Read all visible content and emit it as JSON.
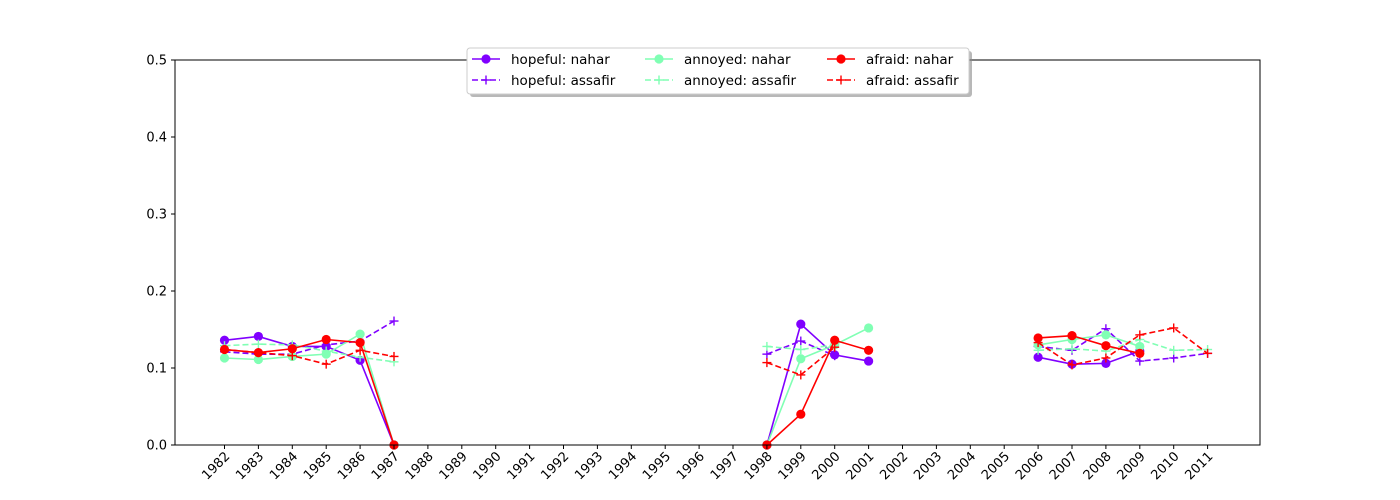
{
  "chart_data": {
    "type": "line",
    "title": "",
    "xlabel": "",
    "ylabel": "",
    "ylim": [
      0,
      0.5
    ],
    "yticks": [
      "0.0",
      "0.1",
      "0.2",
      "0.3",
      "0.4",
      "0.5"
    ],
    "categories": [
      "1982",
      "1983",
      "1984",
      "1985",
      "1986",
      "1987",
      "1988",
      "1989",
      "1990",
      "1991",
      "1992",
      "1993",
      "1994",
      "1995",
      "1996",
      "1997",
      "1998",
      "1999",
      "2000",
      "2001",
      "2002",
      "2003",
      "2004",
      "2005",
      "2006",
      "2007",
      "2008",
      "2009",
      "2010",
      "2011"
    ],
    "legend_position": "top-center",
    "grid": false,
    "series": [
      {
        "name": "hopeful: nahar",
        "color": "#8000ff",
        "style": "solid",
        "marker": "circle",
        "values": [
          0.136,
          0.141,
          0.128,
          0.128,
          0.11,
          0.0,
          null,
          null,
          null,
          null,
          null,
          null,
          null,
          null,
          null,
          null,
          0.0,
          0.157,
          0.117,
          0.109,
          null,
          null,
          null,
          null,
          0.114,
          0.105,
          0.106,
          0.122,
          null,
          null
        ]
      },
      {
        "name": "hopeful: assafir",
        "color": "#8000ff",
        "style": "dashed",
        "marker": "plus",
        "values": [
          0.121,
          0.118,
          0.118,
          0.13,
          0.135,
          0.161,
          null,
          null,
          null,
          null,
          null,
          null,
          null,
          null,
          null,
          null,
          0.118,
          0.135,
          0.116,
          null,
          null,
          null,
          null,
          null,
          0.128,
          0.123,
          0.151,
          0.109,
          0.113,
          0.119
        ]
      },
      {
        "name": "annoyed: nahar",
        "color": "#80ffb4",
        "style": "solid",
        "marker": "circle",
        "values": [
          0.113,
          0.111,
          0.115,
          0.118,
          0.144,
          0.0,
          null,
          null,
          null,
          null,
          null,
          null,
          null,
          null,
          null,
          null,
          0.0,
          0.112,
          0.13,
          0.152,
          null,
          null,
          null,
          null,
          0.13,
          0.137,
          0.143,
          0.128,
          null,
          null
        ]
      },
      {
        "name": "annoyed: assafir",
        "color": "#80ffb4",
        "style": "dashed",
        "marker": "plus",
        "values": [
          0.129,
          0.131,
          0.13,
          0.122,
          0.114,
          0.108,
          null,
          null,
          null,
          null,
          null,
          null,
          null,
          null,
          null,
          null,
          0.128,
          0.124,
          0.13,
          null,
          null,
          null,
          null,
          null,
          0.123,
          0.125,
          0.122,
          0.137,
          0.123,
          0.124
        ]
      },
      {
        "name": "afraid: nahar",
        "color": "#ff0000",
        "style": "solid",
        "marker": "circle",
        "values": [
          0.124,
          0.12,
          0.125,
          0.137,
          0.133,
          0.0,
          null,
          null,
          null,
          null,
          null,
          null,
          null,
          null,
          null,
          null,
          0.0,
          0.04,
          0.136,
          0.123,
          null,
          null,
          null,
          null,
          0.139,
          0.142,
          0.129,
          0.119,
          null,
          null
        ]
      },
      {
        "name": "afraid: assafir",
        "color": "#ff0000",
        "style": "dashed",
        "marker": "plus",
        "values": [
          0.124,
          0.12,
          0.116,
          0.105,
          0.123,
          0.115,
          null,
          null,
          null,
          null,
          null,
          null,
          null,
          null,
          null,
          null,
          0.107,
          0.091,
          0.127,
          null,
          null,
          null,
          null,
          null,
          0.133,
          0.104,
          0.113,
          0.143,
          0.152,
          0.119
        ]
      }
    ]
  }
}
